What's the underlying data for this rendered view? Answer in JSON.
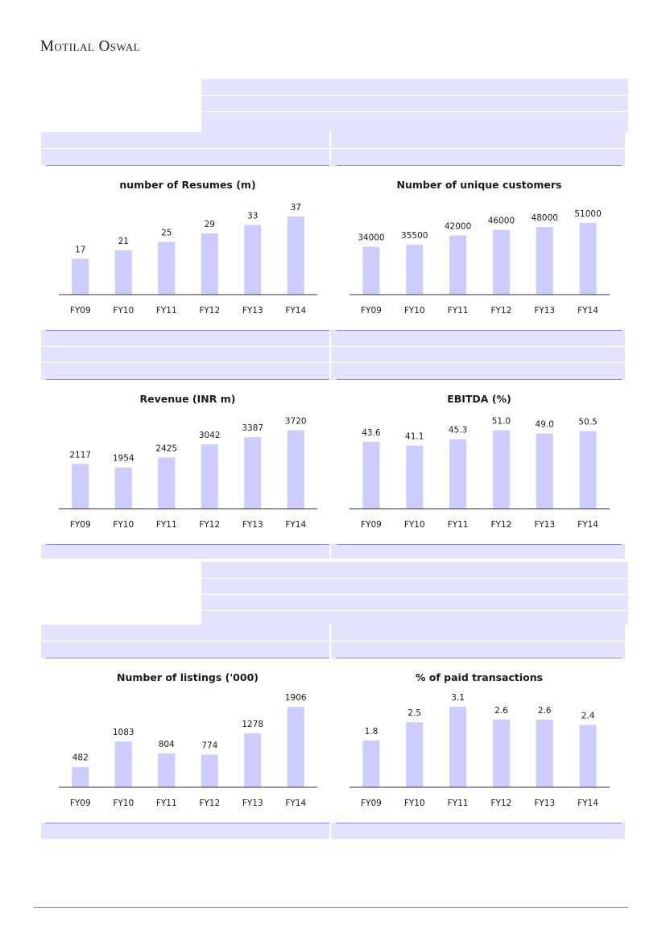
{
  "header": {
    "brand": "Motilal Oswal"
  },
  "colors": {
    "bar": "#ccccff",
    "band": "#e4e4ff",
    "axis": "#333333",
    "rule": "#8a8ad0"
  },
  "chart_data": [
    {
      "type": "bar",
      "title": "number of Resumes (m)",
      "categories": [
        "FY09",
        "FY10",
        "FY11",
        "FY12",
        "FY13",
        "FY14"
      ],
      "values": [
        17,
        21,
        25,
        29,
        33,
        37
      ],
      "labels": [
        "17",
        "21",
        "25",
        "29",
        "33",
        "37"
      ],
      "ylim": [
        0,
        40
      ]
    },
    {
      "type": "bar",
      "title": "Number of unique customers",
      "categories": [
        "FY09",
        "FY10",
        "FY11",
        "FY12",
        "FY13",
        "FY14"
      ],
      "values": [
        34000,
        35500,
        42000,
        46000,
        48000,
        51000
      ],
      "labels": [
        "34000",
        "35500",
        "42000",
        "46000",
        "48000",
        "51000"
      ],
      "ylim": [
        0,
        60000
      ]
    },
    {
      "type": "bar",
      "title": "Revenue (INR  m)",
      "categories": [
        "FY09",
        "FY10",
        "FY11",
        "FY12",
        "FY13",
        "FY14"
      ],
      "values": [
        2117,
        1954,
        2425,
        3042,
        3387,
        3720
      ],
      "labels": [
        "2117",
        "1954",
        "2425",
        "3042",
        "3387",
        "3720"
      ],
      "ylim": [
        0,
        4000
      ]
    },
    {
      "type": "bar",
      "title": "EBITDA (%)",
      "categories": [
        "FY09",
        "FY10",
        "FY11",
        "FY12",
        "FY13",
        "FY14"
      ],
      "values": [
        43.6,
        41.1,
        45.3,
        51.0,
        49.0,
        50.5
      ],
      "labels": [
        "43.6",
        "41.1",
        "45.3",
        "51.0",
        "49.0",
        "50.5"
      ],
      "ylim": [
        0,
        55
      ]
    },
    {
      "type": "bar",
      "title": "Number of listings ('000)",
      "categories": [
        "FY09",
        "FY10",
        "FY11",
        "FY12",
        "FY13",
        "FY14"
      ],
      "values": [
        482,
        1083,
        804,
        774,
        1278,
        1906
      ],
      "labels": [
        "482",
        "1083",
        "804",
        "774",
        "1278",
        "1906"
      ],
      "ylim": [
        0,
        2000
      ]
    },
    {
      "type": "bar",
      "title": "% of paid transactions",
      "categories": [
        "FY09",
        "FY10",
        "FY11",
        "FY12",
        "FY13",
        "FY14"
      ],
      "values": [
        1.8,
        2.5,
        3.1,
        2.6,
        2.6,
        2.4
      ],
      "labels": [
        "1.8",
        "2.5",
        "3.1",
        "2.6",
        "2.6",
        "2.4"
      ],
      "ylim": [
        0,
        3.25
      ]
    }
  ]
}
